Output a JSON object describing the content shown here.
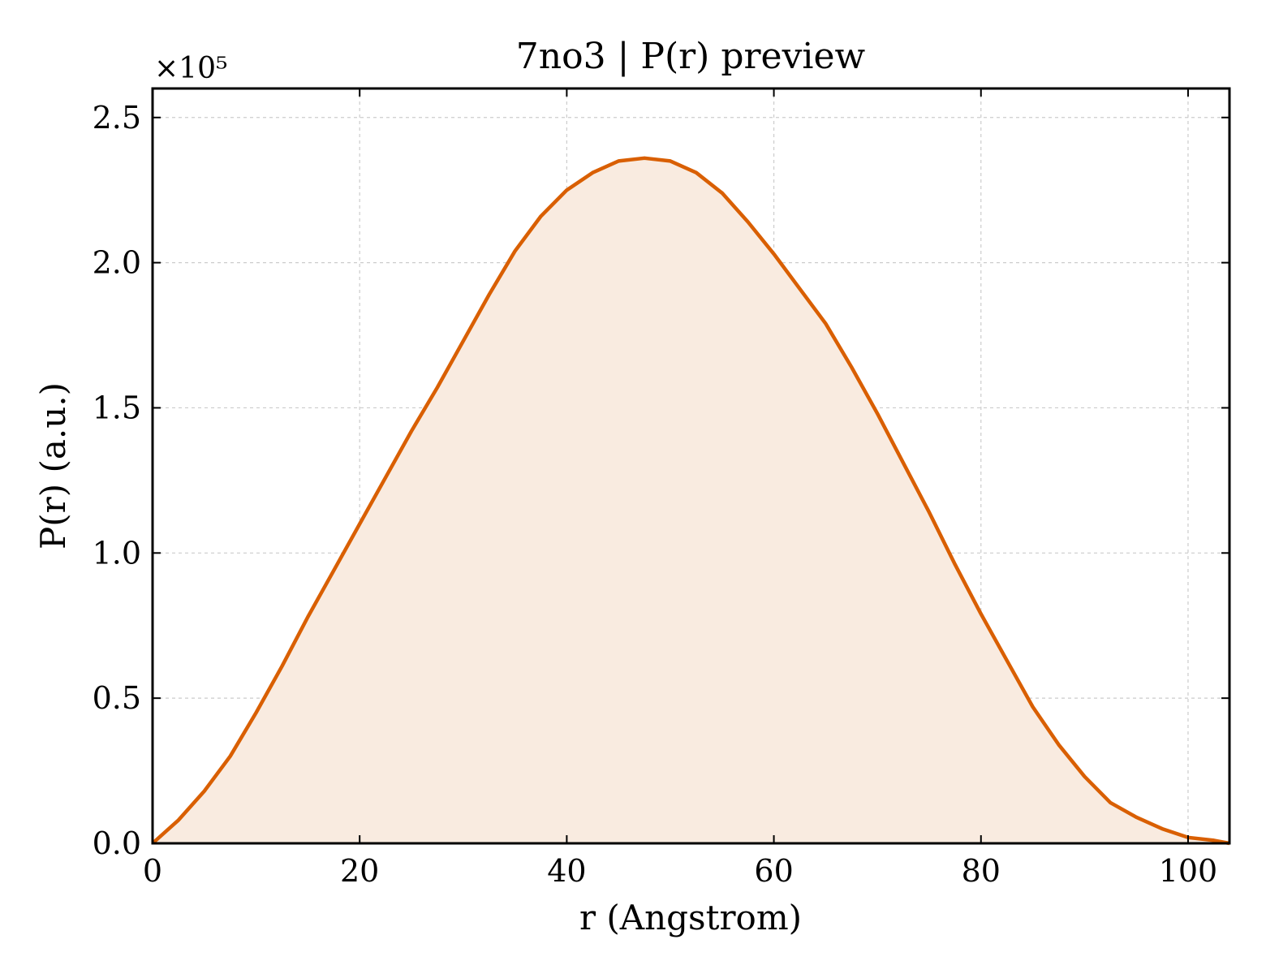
{
  "chart_data": {
    "type": "area",
    "title": "7no3 | P(r) preview",
    "xlabel": "r (Angstrom)",
    "ylabel": "P(r) (a.u.)",
    "y_multiplier_label": "×10⁵",
    "xlim": [
      0,
      104
    ],
    "ylim": [
      0,
      2.6
    ],
    "xticks": [
      "0",
      "20",
      "40",
      "60",
      "80",
      "100"
    ],
    "yticks": [
      "0.0",
      "0.5",
      "1.0",
      "1.5",
      "2.0",
      "2.5"
    ],
    "grid": true,
    "line_color": "#d95f02",
    "fill_color": "#f9ebe0",
    "series": [
      {
        "x": [
          0,
          2.5,
          5,
          7.5,
          10,
          12.5,
          15,
          17.5,
          20,
          22.5,
          25,
          27.5,
          30,
          32.5,
          35,
          37.5,
          40,
          42.5,
          45,
          47.5,
          50,
          52.5,
          55,
          57.5,
          60,
          62.5,
          65,
          67.5,
          70,
          72.5,
          75,
          77.5,
          80,
          82.5,
          85,
          87.5,
          90,
          92.5,
          95,
          97.5,
          100,
          102.5,
          104
        ],
        "y": [
          0.0,
          0.08,
          0.18,
          0.3,
          0.45,
          0.61,
          0.78,
          0.94,
          1.1,
          1.26,
          1.42,
          1.57,
          1.73,
          1.89,
          2.04,
          2.16,
          2.25,
          2.31,
          2.35,
          2.36,
          2.35,
          2.31,
          2.24,
          2.14,
          2.03,
          1.91,
          1.79,
          1.64,
          1.48,
          1.31,
          1.14,
          0.96,
          0.79,
          0.63,
          0.47,
          0.34,
          0.23,
          0.14,
          0.09,
          0.05,
          0.02,
          0.01,
          0.0
        ]
      }
    ]
  }
}
